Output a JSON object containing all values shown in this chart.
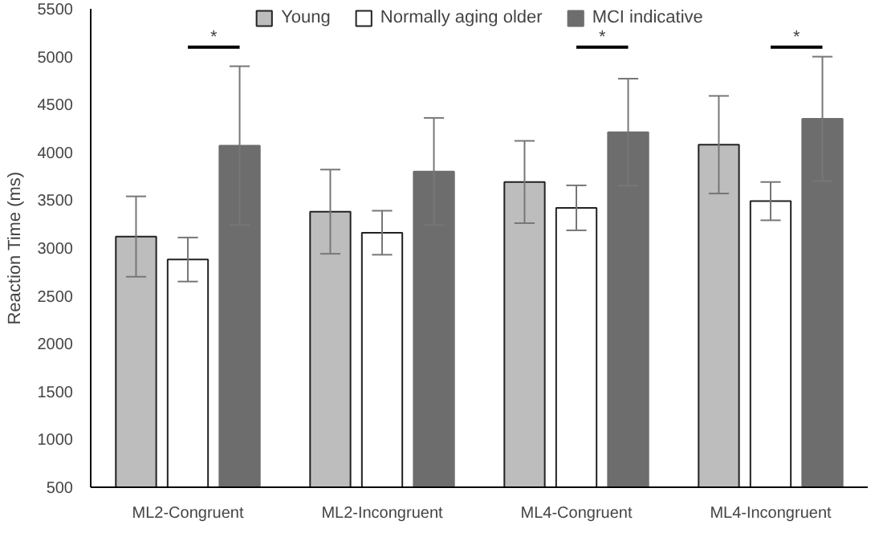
{
  "chart_data": {
    "type": "bar",
    "ylabel": "Reaction Time (ms)",
    "categories": [
      "ML2-Congruent",
      "ML2-Incongruent",
      "ML4-Congruent",
      "ML4-Incongruent"
    ],
    "series": [
      {
        "name": "Young",
        "color": "#bdbdbd",
        "values": [
          3120,
          3380,
          3690,
          4080
        ],
        "errors": [
          420,
          440,
          430,
          510
        ]
      },
      {
        "name": "Normally aging older",
        "color": "#ffffff",
        "values": [
          2880,
          3160,
          3420,
          3490
        ],
        "errors": [
          230,
          230,
          235,
          200
        ]
      },
      {
        "name": "MCI indicative",
        "color": "#6d6d6d",
        "values": [
          4070,
          3800,
          4210,
          4350
        ],
        "errors": [
          830,
          560,
          560,
          650
        ]
      }
    ],
    "ylim": [
      500,
      5500
    ],
    "yticks": [
      500,
      1000,
      1500,
      2000,
      2500,
      3000,
      3500,
      4000,
      4500,
      5000,
      5500
    ],
    "grid": false,
    "legend": "top",
    "annotations": [
      "*",
      "*",
      "*"
    ]
  }
}
